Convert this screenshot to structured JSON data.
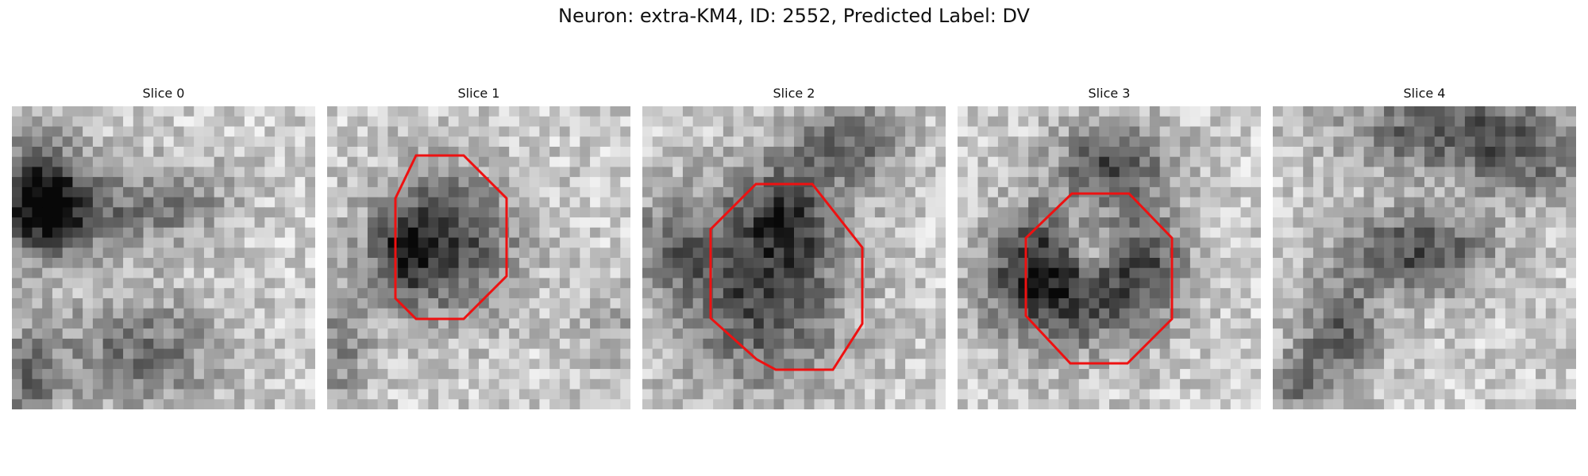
{
  "figure": {
    "title": "Neuron: extra-KM4, ID: 2552, Predicted Label: DV"
  },
  "overlay_color": "#ee1111",
  "slices": [
    {
      "title": "Slice 0",
      "roi_visible": false,
      "texture": "diffuse-dark-left"
    },
    {
      "title": "Slice 1",
      "roi_visible": true,
      "texture": "dark-blob-center"
    },
    {
      "title": "Slice 2",
      "roi_visible": true,
      "texture": "dark-blob-center-large"
    },
    {
      "title": "Slice 3",
      "roi_visible": true,
      "texture": "dark-ring-center"
    },
    {
      "title": "Slice 4",
      "roi_visible": false,
      "texture": "diffuse-dark-top"
    }
  ]
}
